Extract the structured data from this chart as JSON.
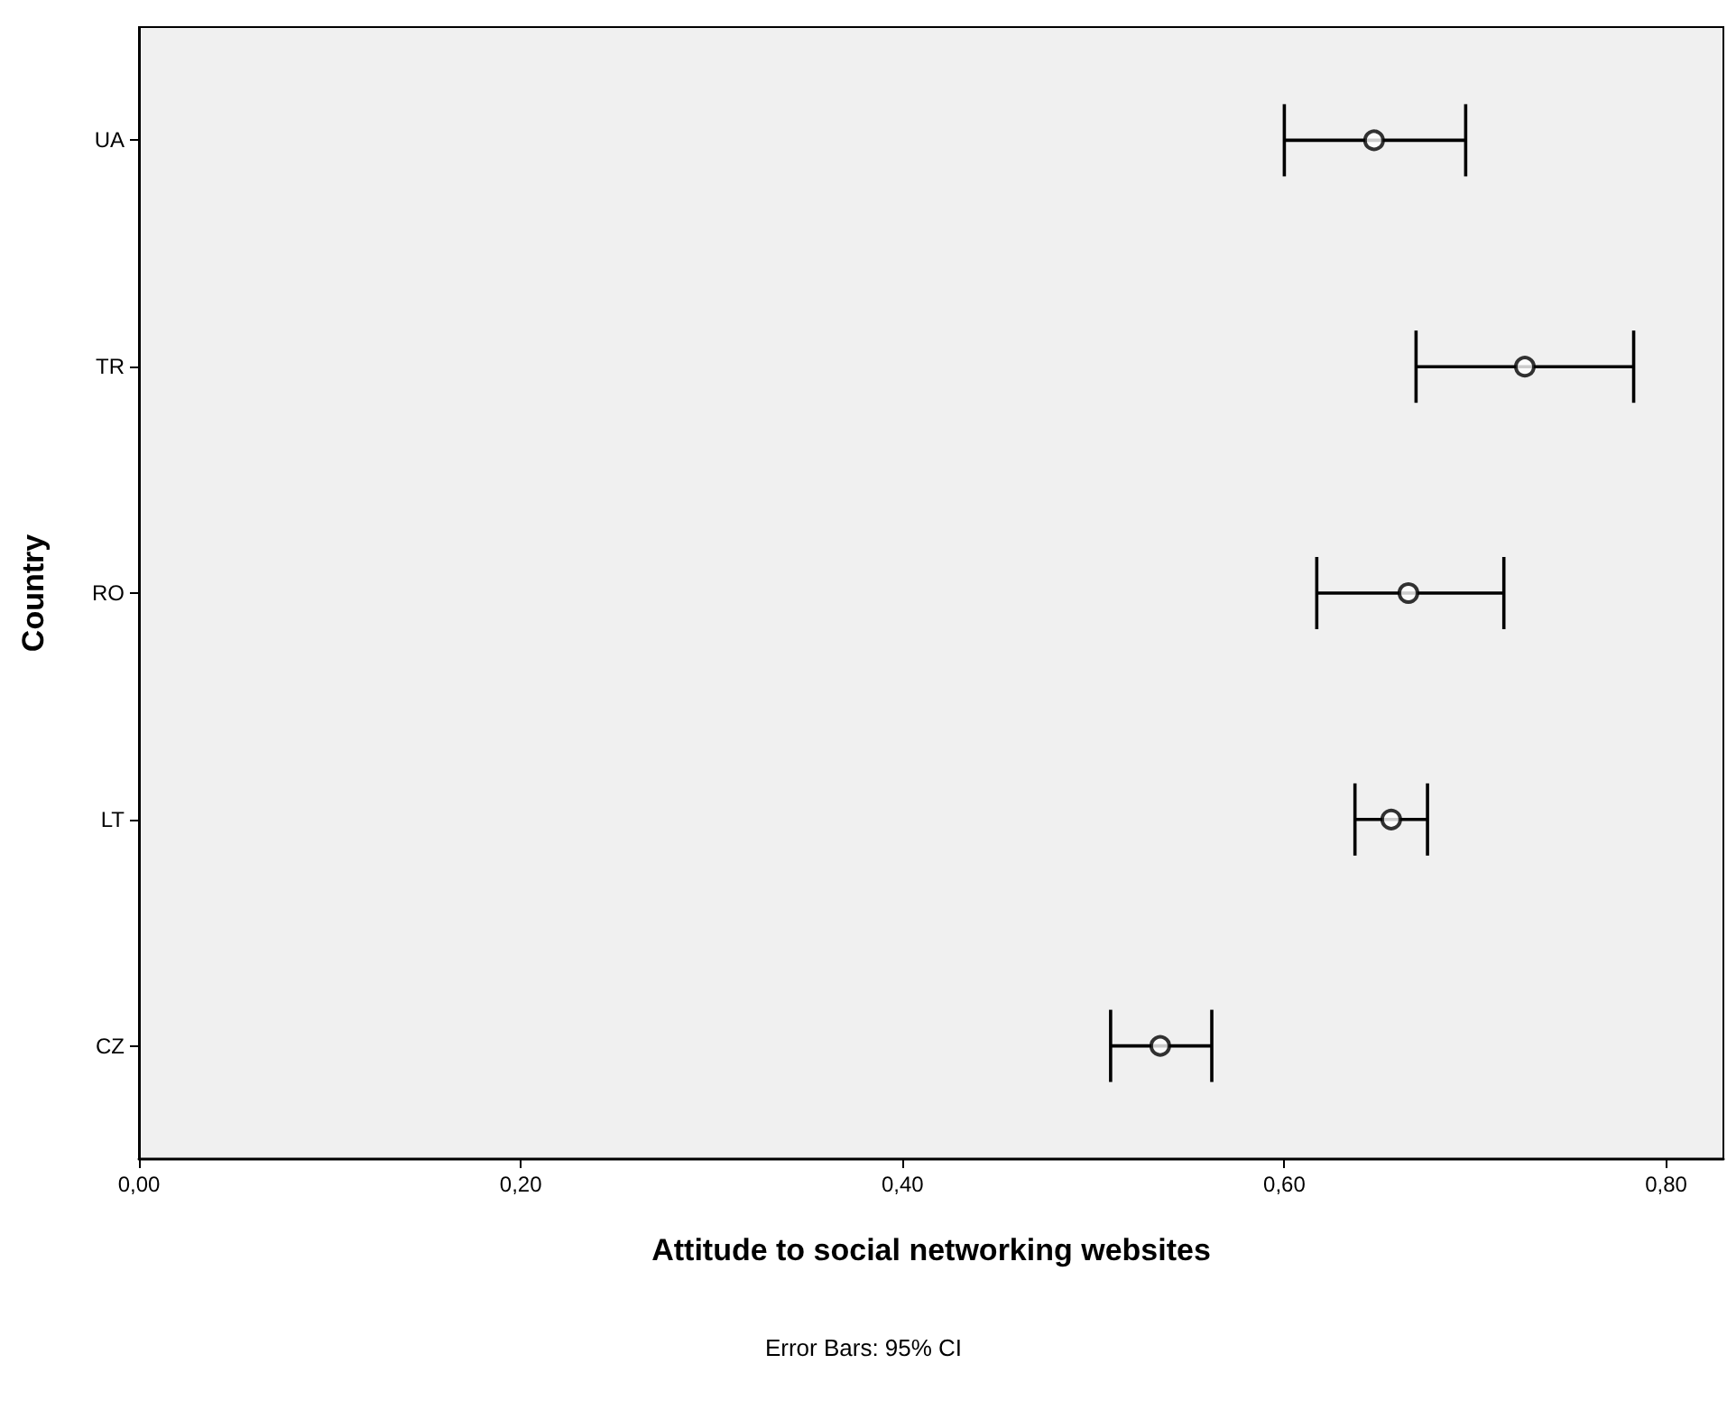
{
  "chart_data": {
    "type": "scatter",
    "orientation": "horizontal",
    "xlabel": "Attitude to social networking websites",
    "ylabel": "Country",
    "annotations": [
      "Error Bars: 95% CI"
    ],
    "categories": [
      "UA",
      "TR",
      "RO",
      "LT",
      "CZ"
    ],
    "values": [
      0.647,
      0.726,
      0.665,
      0.656,
      0.535
    ],
    "errors": [
      [
        0.6,
        0.695
      ],
      [
        0.669,
        0.783
      ],
      [
        0.617,
        0.715
      ],
      [
        0.637,
        0.675
      ],
      [
        0.509,
        0.562
      ]
    ],
    "color": "#000000",
    "marker": "circle",
    "xlim": [
      0,
      0.83
    ],
    "xticks": [
      {
        "value": 0,
        "label": "0,00"
      },
      {
        "value": 0.2,
        "label": "0,20"
      },
      {
        "value": 0.4,
        "label": "0,40"
      },
      {
        "value": 0.6,
        "label": "0,60"
      },
      {
        "value": 0.8,
        "label": "0,80"
      }
    ],
    "grid": false
  }
}
